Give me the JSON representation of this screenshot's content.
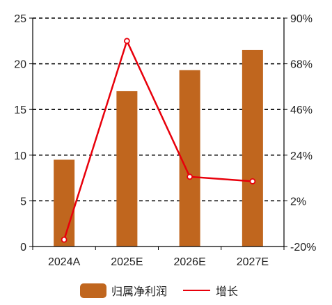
{
  "chart_data": {
    "type": "bar",
    "categories": [
      "2024A",
      "2025E",
      "2026E",
      "2027E"
    ],
    "series": [
      {
        "name": "归属净利润",
        "type": "bar",
        "axis": "left",
        "color": "#C0661E",
        "values": [
          9.5,
          17.0,
          19.3,
          21.5
        ]
      },
      {
        "name": "增长",
        "type": "line",
        "axis": "right",
        "color": "#E8000B",
        "values": [
          -16.7,
          79.0,
          13.6,
          11.4
        ]
      }
    ],
    "left_axis": {
      "ylim": [
        0,
        25
      ],
      "ticks": [
        "0",
        "5",
        "10",
        "15",
        "20",
        "25"
      ],
      "tick_values": [
        0,
        5,
        10,
        15,
        20,
        25
      ]
    },
    "right_axis": {
      "ylim": [
        -20,
        90
      ],
      "ticks": [
        "-20%",
        "2%",
        "24%",
        "46%",
        "68%",
        "90%"
      ],
      "tick_values": [
        -20,
        2,
        24,
        46,
        68,
        90
      ]
    },
    "grid": "dashed horizontal",
    "legend_position": "bottom",
    "title": "",
    "xlabel": "",
    "ylabel": ""
  }
}
